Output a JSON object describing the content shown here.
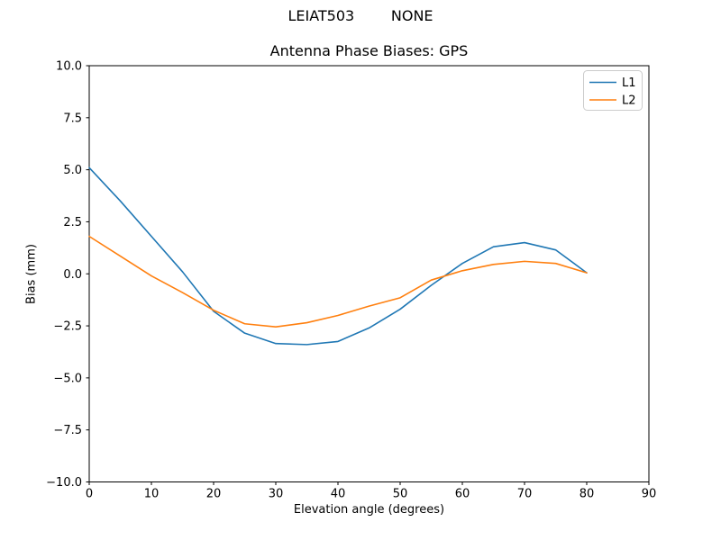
{
  "chart_data": {
    "type": "line",
    "suptitle": "LEIAT503        NONE",
    "title": "Antenna Phase Biases: GPS",
    "xlabel": "Elevation angle (degrees)",
    "ylabel": "Bias (mm)",
    "xlim": [
      0,
      90
    ],
    "ylim": [
      -10,
      10
    ],
    "xticks": [
      0,
      10,
      20,
      30,
      40,
      50,
      60,
      70,
      80,
      90
    ],
    "yticks": [
      -10,
      -7.5,
      -5,
      -2.5,
      0,
      2.5,
      5,
      7.5,
      10
    ],
    "ytick_labels": [
      "−10.0",
      "−7.5",
      "−5.0",
      "−2.5",
      "0.0",
      "2.5",
      "5.0",
      "7.5",
      "10.0"
    ],
    "grid": false,
    "legend": {
      "position": "upper right",
      "entries": [
        "L1",
        "L2"
      ]
    },
    "x": [
      0,
      5,
      10,
      15,
      20,
      25,
      30,
      35,
      40,
      45,
      50,
      55,
      60,
      65,
      70,
      75,
      80
    ],
    "series": [
      {
        "name": "L1",
        "color": "#1f77b4",
        "values": [
          5.1,
          3.5,
          1.8,
          0.1,
          -1.8,
          -2.85,
          -3.35,
          -3.4,
          -3.25,
          -2.6,
          -1.7,
          -0.55,
          0.5,
          1.3,
          1.5,
          1.15,
          0.05
        ]
      },
      {
        "name": "L2",
        "color": "#ff7f0e",
        "values": [
          1.8,
          0.85,
          -0.1,
          -0.9,
          -1.75,
          -2.4,
          -2.55,
          -2.35,
          -2.0,
          -1.55,
          -1.15,
          -0.3,
          0.15,
          0.45,
          0.6,
          0.5,
          0.05
        ]
      }
    ]
  }
}
